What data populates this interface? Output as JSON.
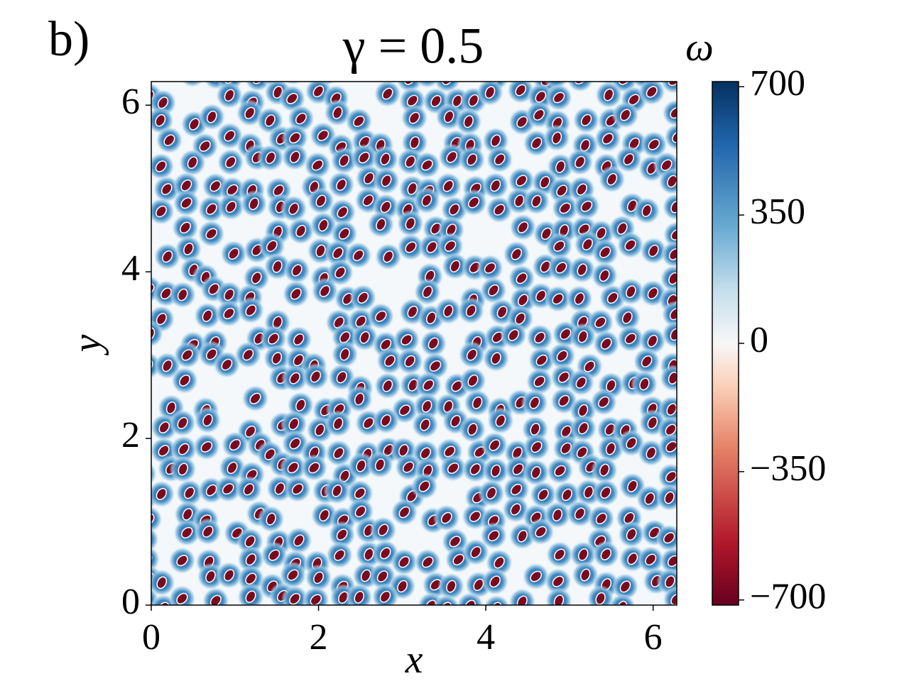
{
  "chart_data": {
    "type": "heatmap",
    "panel_label": "b)",
    "title": "γ = 0.5",
    "xlabel": "x",
    "ylabel": "y",
    "colorbar_label": "ω",
    "colormap": "RdBu",
    "xlim": [
      0,
      6.283
    ],
    "ylim": [
      0,
      6.283
    ],
    "xticks": [
      0,
      2,
      4,
      6
    ],
    "yticks": [
      0,
      2,
      4,
      6
    ],
    "clim": [
      -714,
      714
    ],
    "cticks": [
      {
        "value": -700,
        "label": "−700"
      },
      {
        "value": -350,
        "label": "−350"
      },
      0,
      350,
      700
    ]
  }
}
